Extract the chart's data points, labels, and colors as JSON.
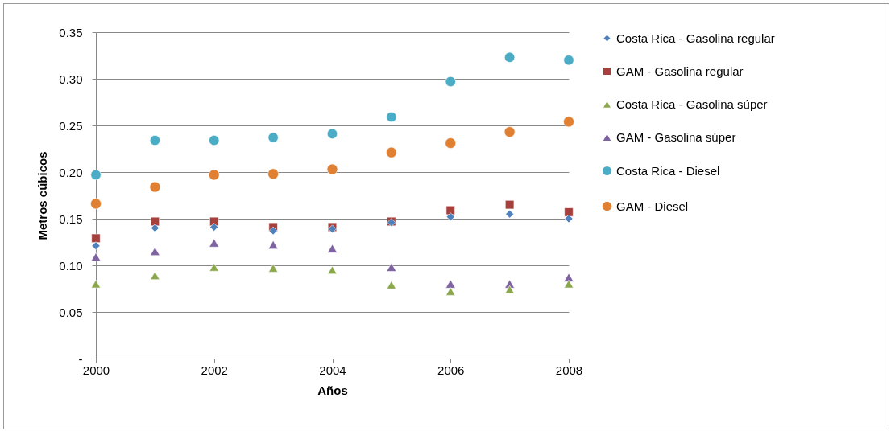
{
  "chart_data": {
    "type": "scatter",
    "xlabel": "Años",
    "ylabel": "Metros cúbicos",
    "x": [
      2000,
      2001,
      2002,
      2003,
      2004,
      2005,
      2006,
      2007,
      2008
    ],
    "xlim": [
      2000,
      2008
    ],
    "xticks": [
      2000,
      2002,
      2004,
      2006,
      2008
    ],
    "ylim": [
      0,
      0.35
    ],
    "yticks": [
      {
        "value": 0,
        "label": "-"
      },
      {
        "value": 0.05,
        "label": "0.05"
      },
      {
        "value": 0.1,
        "label": "0.10"
      },
      {
        "value": 0.15,
        "label": "0.15"
      },
      {
        "value": 0.2,
        "label": "0.20"
      },
      {
        "value": 0.25,
        "label": "0.25"
      },
      {
        "value": 0.3,
        "label": "0.30"
      },
      {
        "value": 0.35,
        "label": "0.35"
      }
    ],
    "grid": "y",
    "legend": "right",
    "series": [
      {
        "name": "Costa Rica - Gasolina regular",
        "color": "#4f81bd",
        "marker": "diamond",
        "values": [
          0.121,
          0.14,
          0.141,
          0.137,
          0.139,
          0.146,
          0.152,
          0.155,
          0.15
        ]
      },
      {
        "name": "GAM - Gasolina regular",
        "color": "#a5403d",
        "marker": "square",
        "values": [
          0.129,
          0.147,
          0.147,
          0.141,
          0.141,
          0.147,
          0.159,
          0.165,
          0.157
        ]
      },
      {
        "name": "Costa Rica - Gasolina súper",
        "color": "#8aa84b",
        "marker": "triangle",
        "values": [
          0.08,
          0.089,
          0.098,
          0.097,
          0.095,
          0.079,
          0.072,
          0.074,
          0.08
        ]
      },
      {
        "name": "GAM - Gasolina súper",
        "color": "#7f63a1",
        "marker": "triangle",
        "values": [
          0.109,
          0.115,
          0.124,
          0.122,
          0.118,
          0.098,
          0.08,
          0.08,
          0.087
        ]
      },
      {
        "name": "Costa Rica - Diesel",
        "color": "#4bacc6",
        "marker": "circle",
        "values": [
          0.197,
          0.234,
          0.234,
          0.237,
          0.241,
          0.259,
          0.297,
          0.323,
          0.32
        ]
      },
      {
        "name": "GAM - Diesel",
        "color": "#e08033",
        "marker": "circle",
        "values": [
          0.166,
          0.184,
          0.197,
          0.198,
          0.203,
          0.221,
          0.231,
          0.243,
          0.254
        ]
      }
    ]
  }
}
